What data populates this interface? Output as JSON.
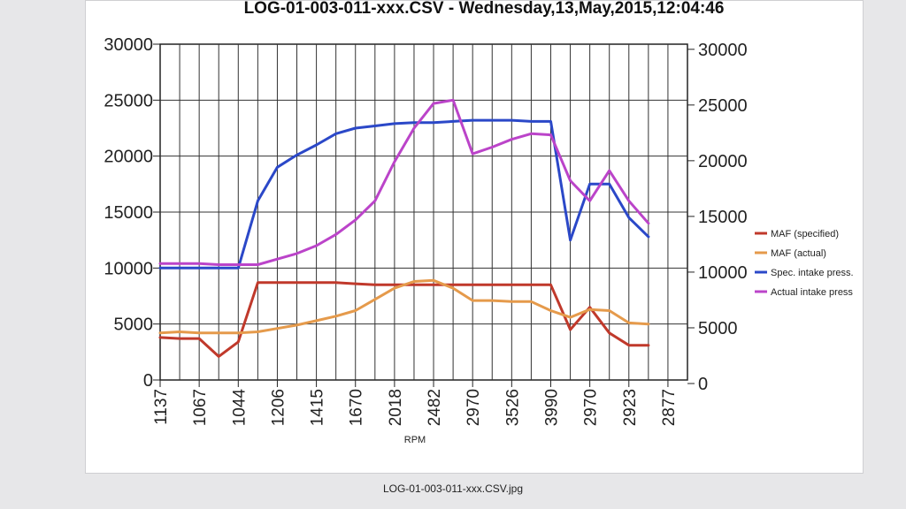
{
  "chart_data": {
    "type": "line",
    "title": "LOG-01-003-011-xxx.CSV - Wednesday,13,May,2015,12:04:46",
    "xlabel": "RPM",
    "ylabel": "",
    "ylim": [
      0,
      30000
    ],
    "y_ticks": [
      "0",
      "5000",
      "10000",
      "15000",
      "20000",
      "25000",
      "30000"
    ],
    "y2_ticks": [
      "0",
      "5000",
      "10000",
      "15000",
      "20000",
      "25000",
      "30000"
    ],
    "x_tick_labels": [
      "1137",
      "1067",
      "1044",
      "1206",
      "1415",
      "1670",
      "2018",
      "2482",
      "2970",
      "3526",
      "3990",
      "2970",
      "2923",
      "2877"
    ],
    "grid": true,
    "legend_position": "right",
    "x": [
      0,
      0.5,
      1,
      1.5,
      2,
      2.5,
      3,
      3.5,
      4,
      4.5,
      5,
      5.5,
      6,
      6.5,
      7,
      7.5,
      8,
      8.5,
      9,
      9.5,
      10,
      10.5,
      11,
      11.5,
      12,
      12.5,
      13,
      13.25
    ],
    "series": [
      {
        "name": "MAF (specified)",
        "color": "#c0392b",
        "values": [
          3800,
          3700,
          3700,
          2100,
          3400,
          8700,
          8700,
          8700,
          8700,
          8700,
          8600,
          8500,
          8500,
          8500,
          8500,
          8500,
          8500,
          8500,
          8500,
          8500,
          8500,
          4500,
          6500,
          4200,
          3100,
          3100,
          null,
          null
        ]
      },
      {
        "name": "MAF (actual)",
        "color": "#e59a4b",
        "values": [
          4200,
          4300,
          4200,
          4200,
          4200,
          4300,
          4600,
          4900,
          5300,
          5700,
          6200,
          7200,
          8200,
          8800,
          8900,
          8200,
          7100,
          7100,
          7000,
          7000,
          6200,
          5600,
          6300,
          6200,
          5100,
          5000,
          null,
          null
        ]
      },
      {
        "name": "Spec. intake press.",
        "color": "#2b48c8",
        "values": [
          10000,
          10000,
          10000,
          10000,
          10000,
          16000,
          19000,
          20100,
          21000,
          22000,
          22500,
          22700,
          22900,
          23000,
          23000,
          23100,
          23200,
          23200,
          23200,
          23100,
          23100,
          12500,
          17500,
          17500,
          14500,
          12800,
          null,
          null
        ]
      },
      {
        "name": "Actual intake press",
        "color": "#bb44c9",
        "values": [
          10400,
          10400,
          10400,
          10300,
          10300,
          10300,
          10800,
          11300,
          12000,
          13000,
          14300,
          16000,
          19500,
          22500,
          24700,
          25000,
          20200,
          20800,
          21500,
          22000,
          21900,
          17800,
          16000,
          18700,
          16000,
          14000,
          null,
          null
        ]
      }
    ]
  },
  "caption": "LOG-01-003-011-xxx.CSV.jpg"
}
